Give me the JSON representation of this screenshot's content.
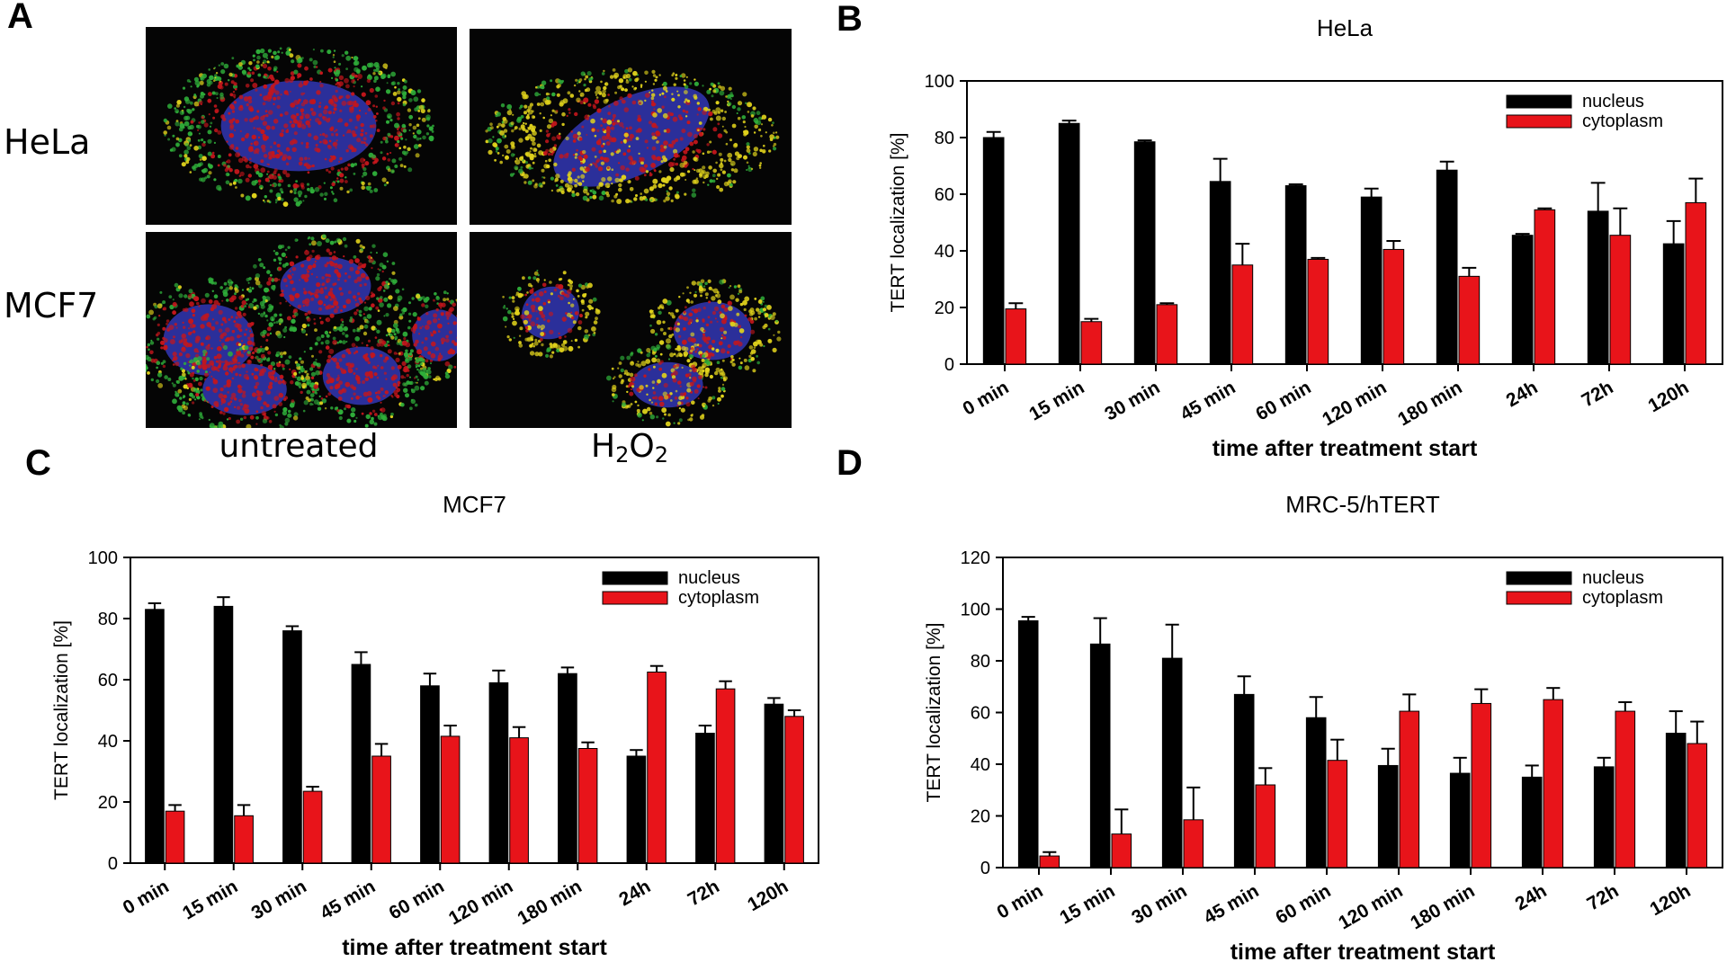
{
  "panel_a": {
    "letter": "A",
    "rows": [
      "HeLa",
      "MCF7"
    ],
    "columns": [
      "untreated",
      "H2O2"
    ],
    "colors": {
      "nucleus_stain": "#2b2f9a",
      "tert_stain": "#c4161c",
      "mito_stain": "#2fae3a",
      "overlap": "#e0d21c"
    }
  },
  "colors": {
    "nucleus": "#000000",
    "cytoplasm": "#e8141a"
  },
  "chart_data": [
    {
      "letter": "B",
      "type": "bar",
      "title": "HeLa",
      "xlabel": "time after treatment start",
      "ylabel": "TERT localization [%]",
      "ylim": [
        0,
        100
      ],
      "yticks": [
        0,
        20,
        40,
        60,
        80,
        100
      ],
      "legend_position": "top-right",
      "categories": [
        "0 min",
        "15 min",
        "30 min",
        "45 min",
        "60 min",
        "120 min",
        "180 min",
        "24h",
        "72h",
        "120h"
      ],
      "series": [
        {
          "name": "nucleus",
          "values": [
            80,
            85,
            78.5,
            64.5,
            63,
            59,
            68.5,
            45.5,
            54,
            42.5
          ],
          "errors": [
            2,
            1,
            0.5,
            8,
            0.5,
            3,
            3,
            0.5,
            10,
            8
          ]
        },
        {
          "name": "cytoplasm",
          "values": [
            19.5,
            15,
            21,
            35,
            37,
            40.5,
            31,
            54.5,
            45.5,
            57
          ],
          "errors": [
            2,
            1,
            0.5,
            7.5,
            0.5,
            3,
            3,
            0.5,
            9.5,
            8.5
          ]
        }
      ]
    },
    {
      "letter": "C",
      "type": "bar",
      "title": "MCF7",
      "xlabel": "time after treatment start",
      "ylabel": "TERT localization [%]",
      "ylim": [
        0,
        100
      ],
      "yticks": [
        0,
        20,
        40,
        60,
        80,
        100
      ],
      "legend_position": "top-right",
      "categories": [
        "0 min",
        "15 min",
        "30 min",
        "45 min",
        "60 min",
        "120 min",
        "180 min",
        "24h",
        "72h",
        "120h"
      ],
      "series": [
        {
          "name": "nucleus",
          "values": [
            83,
            84,
            76,
            65,
            58,
            59,
            62,
            35,
            42.5,
            52
          ],
          "errors": [
            2,
            3,
            1.5,
            4,
            4,
            4,
            2,
            2,
            2.5,
            2
          ]
        },
        {
          "name": "cytoplasm",
          "values": [
            17,
            15.5,
            23.5,
            35,
            41.5,
            41,
            37.5,
            62.5,
            57,
            48
          ],
          "errors": [
            2,
            3.5,
            1.5,
            4,
            3.5,
            3.5,
            2,
            2,
            2.5,
            2
          ]
        }
      ]
    },
    {
      "letter": "D",
      "type": "bar",
      "title": "MRC-5/hTERT",
      "xlabel": "time after treatment start",
      "ylabel": "TERT localization [%]",
      "ylim": [
        0,
        120
      ],
      "yticks": [
        0,
        20,
        40,
        60,
        80,
        100,
        120
      ],
      "legend_position": "top-right",
      "categories": [
        "0 min",
        "15 min",
        "30 min",
        "45 min",
        "60 min",
        "120 min",
        "180 min",
        "24h",
        "72h",
        "120h"
      ],
      "series": [
        {
          "name": "nucleus",
          "values": [
            95.5,
            86.5,
            81,
            67,
            58,
            39.5,
            36.5,
            35,
            39,
            52
          ],
          "errors": [
            1.5,
            10,
            13,
            7,
            8,
            6.5,
            6,
            4.5,
            3.5,
            8.5
          ]
        },
        {
          "name": "cytoplasm",
          "values": [
            4.5,
            13,
            18.5,
            32,
            41.5,
            60.5,
            63.5,
            65,
            60.5,
            48
          ],
          "errors": [
            1.5,
            9.5,
            12.5,
            6.5,
            8,
            6.5,
            5.5,
            4.5,
            3.5,
            8.5
          ]
        }
      ]
    }
  ]
}
